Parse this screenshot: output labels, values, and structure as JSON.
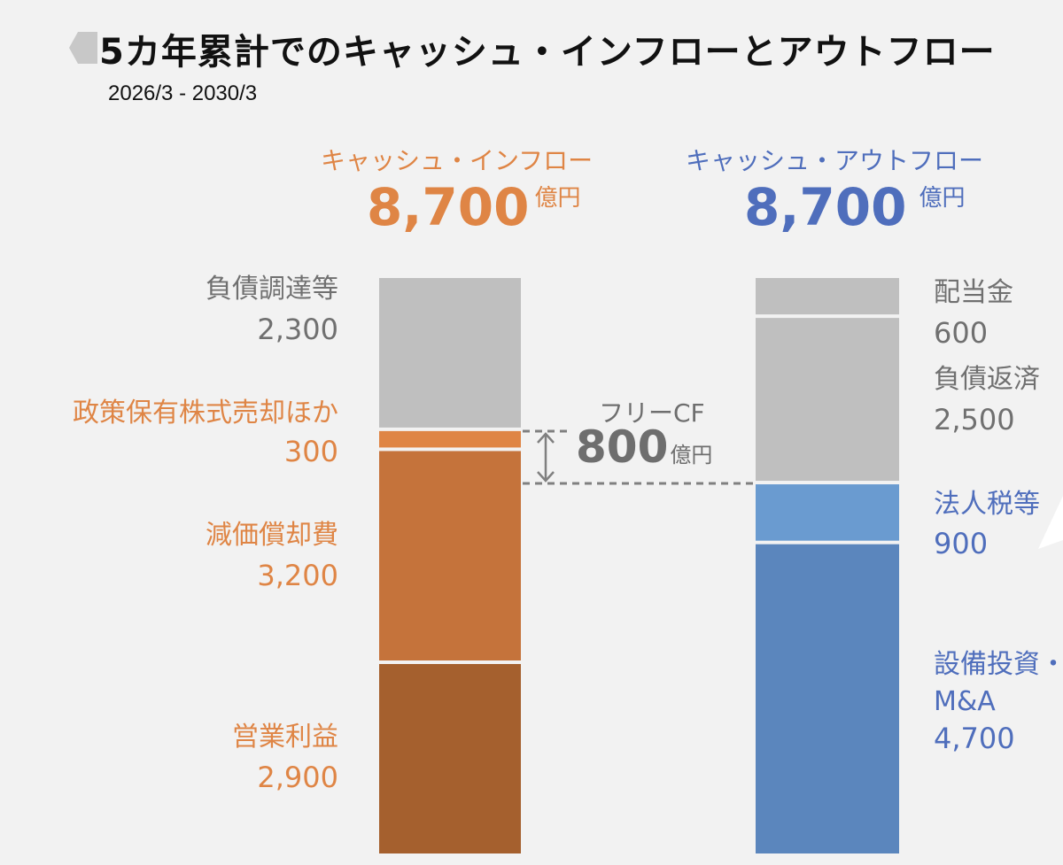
{
  "header": {
    "title": "5カ年累計でのキャッシュ・インフローとアウトフロー",
    "subtitle": "2026/3 - 2030/3"
  },
  "inflow": {
    "label": "キャッシュ・インフロー",
    "total": "8,700",
    "unit": "億円",
    "color": "#df8545"
  },
  "outflow": {
    "label": "キャッシュ・アウトフロー",
    "total": "8,700",
    "unit": "億円",
    "color": "#4f6ebc"
  },
  "free_cf": {
    "label": "フリーCF",
    "value": "800",
    "unit": "億円"
  },
  "chart_data": {
    "type": "bar",
    "categories": [
      "キャッシュ・インフロー",
      "キャッシュ・アウトフロー"
    ],
    "stacked": true,
    "unit": "億円",
    "inflow_segments": [
      {
        "name": "営業利益",
        "value": 2900,
        "display": "2,900",
        "color": "#a5602e",
        "label_color": "#df8545"
      },
      {
        "name": "減価償却費",
        "value": 3200,
        "display": "3,200",
        "color": "#c5733b",
        "label_color": "#df8545"
      },
      {
        "name": "政策保有株式売却ほか",
        "value": 300,
        "display": "300",
        "color": "#df8545",
        "label_color": "#df8545"
      },
      {
        "name": "負債調達等",
        "value": 2300,
        "display": "2,300",
        "color": "#bfbfbf",
        "label_color": "#707070"
      }
    ],
    "outflow_segments": [
      {
        "name": "設備投資・M&A",
        "name_lines": [
          "設備投資・",
          "M&A"
        ],
        "value": 4700,
        "display": "4,700",
        "color": "#5b86bd",
        "label_color": "#4f6ebc"
      },
      {
        "name": "法人税等",
        "value": 900,
        "display": "900",
        "color": "#6a9bd0",
        "label_color": "#4f6ebc"
      },
      {
        "name": "負債返済",
        "value": 2500,
        "display": "2,500",
        "color": "#bfbfbf",
        "label_color": "#707070"
      },
      {
        "name": "配当金",
        "value": 600,
        "display": "600",
        "color": "#bfbfbf",
        "label_color": "#707070"
      }
    ]
  }
}
